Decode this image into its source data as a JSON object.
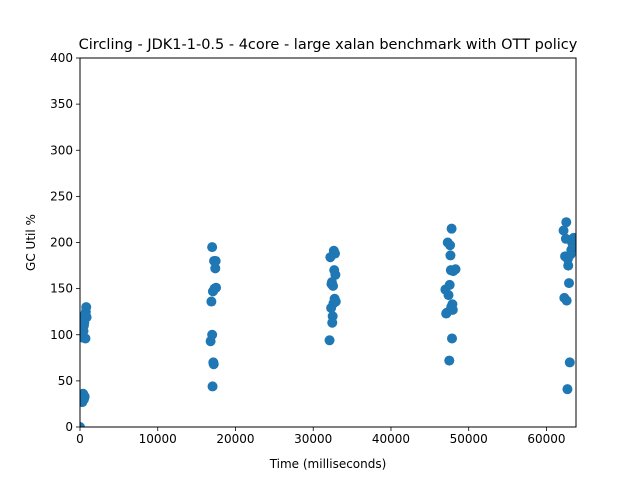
{
  "chart_data": {
    "type": "scatter",
    "title": "Circling - JDK1-1-0.5 - 4core -  large xalan benchmark with OTT policy",
    "xlabel": "Time (milliseconds)",
    "ylabel": "GC Util %",
    "xlim": [
      0,
      63800
    ],
    "ylim": [
      0,
      400
    ],
    "x_ticks": [
      0,
      10000,
      20000,
      30000,
      40000,
      50000,
      60000
    ],
    "y_ticks": [
      0,
      50,
      100,
      150,
      200,
      250,
      300,
      350,
      400
    ],
    "grid": false,
    "marker_color": "#1f77b4",
    "series": [
      {
        "points": [
          [
            0,
            0
          ],
          [
            300,
            27
          ],
          [
            400,
            36
          ],
          [
            500,
            30
          ],
          [
            550,
            32
          ],
          [
            600,
            33
          ],
          [
            350,
            97
          ],
          [
            450,
            104
          ],
          [
            500,
            110
          ],
          [
            550,
            113
          ],
          [
            600,
            118
          ],
          [
            650,
            122
          ],
          [
            700,
            96
          ],
          [
            750,
            125
          ],
          [
            800,
            130
          ],
          [
            850,
            119
          ],
          [
            16800,
            93
          ],
          [
            16900,
            136
          ],
          [
            17000,
            100
          ],
          [
            17000,
            195
          ],
          [
            17050,
            44
          ],
          [
            17100,
            147
          ],
          [
            17150,
            70
          ],
          [
            17200,
            68
          ],
          [
            17250,
            180
          ],
          [
            17300,
            150
          ],
          [
            17400,
            172
          ],
          [
            17450,
            180
          ],
          [
            17500,
            151
          ],
          [
            32100,
            94
          ],
          [
            32200,
            184
          ],
          [
            32300,
            129
          ],
          [
            32350,
            155
          ],
          [
            32400,
            157
          ],
          [
            32450,
            113
          ],
          [
            32500,
            120
          ],
          [
            32550,
            153
          ],
          [
            32600,
            134
          ],
          [
            32650,
            191
          ],
          [
            32700,
            170
          ],
          [
            32750,
            139
          ],
          [
            32800,
            188
          ],
          [
            32850,
            165
          ],
          [
            32900,
            136
          ],
          [
            47000,
            149
          ],
          [
            47100,
            123
          ],
          [
            47200,
            124
          ],
          [
            47300,
            200
          ],
          [
            47400,
            143
          ],
          [
            47500,
            72
          ],
          [
            47550,
            154
          ],
          [
            47600,
            197
          ],
          [
            47650,
            186
          ],
          [
            47700,
            170
          ],
          [
            47750,
            130
          ],
          [
            47800,
            215
          ],
          [
            47850,
            96
          ],
          [
            47900,
            133
          ],
          [
            47950,
            127
          ],
          [
            48000,
            169
          ],
          [
            48300,
            171
          ],
          [
            62200,
            213
          ],
          [
            62300,
            140
          ],
          [
            62400,
            185
          ],
          [
            62500,
            204
          ],
          [
            62550,
            222
          ],
          [
            62600,
            137
          ],
          [
            62700,
            41
          ],
          [
            62750,
            182
          ],
          [
            62800,
            175
          ],
          [
            62900,
            156
          ],
          [
            63000,
            70
          ],
          [
            63100,
            187
          ],
          [
            63200,
            192
          ],
          [
            63300,
            200
          ],
          [
            63400,
            195
          ],
          [
            63500,
            205
          ],
          [
            63600,
            197
          ]
        ]
      }
    ]
  }
}
